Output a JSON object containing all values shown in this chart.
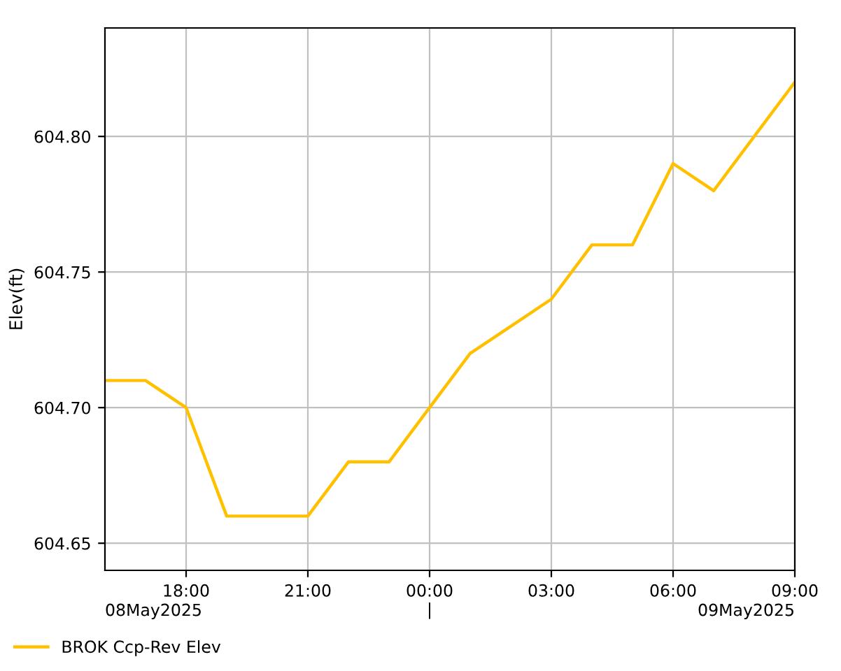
{
  "chart_data": {
    "type": "line",
    "ylabel": "Elev(ft)",
    "x": [
      "2025-05-08T16:00",
      "2025-05-08T17:00",
      "2025-05-08T18:00",
      "2025-05-08T19:00",
      "2025-05-08T20:00",
      "2025-05-08T21:00",
      "2025-05-08T22:00",
      "2025-05-08T23:00",
      "2025-05-09T00:00",
      "2025-05-09T01:00",
      "2025-05-09T02:00",
      "2025-05-09T03:00",
      "2025-05-09T04:00",
      "2025-05-09T05:00",
      "2025-05-09T06:00",
      "2025-05-09T07:00",
      "2025-05-09T08:00",
      "2025-05-09T09:00"
    ],
    "series": [
      {
        "name": "BROK Ccp-Rev Elev",
        "color": "#ffc000",
        "values": [
          604.71,
          604.71,
          604.7,
          604.66,
          604.66,
          604.66,
          604.68,
          604.68,
          604.7,
          604.72,
          604.73,
          604.74,
          604.76,
          604.76,
          604.79,
          604.78,
          604.8,
          604.82
        ]
      }
    ],
    "xlim": [
      "2025-05-08T16:00",
      "2025-05-09T09:00"
    ],
    "xticks": [
      {
        "value": "2025-05-08T18:00",
        "label": "18:00"
      },
      {
        "value": "2025-05-08T21:00",
        "label": "21:00"
      },
      {
        "value": "2025-05-09T00:00",
        "label": "00:00\n|"
      },
      {
        "value": "2025-05-09T03:00",
        "label": "03:00"
      },
      {
        "value": "2025-05-09T06:00",
        "label": "06:00"
      },
      {
        "value": "2025-05-09T09:00",
        "label": "09:00"
      }
    ],
    "annotations": [
      "08May2025",
      "09May2025"
    ],
    "ylim": [
      604.64,
      604.84
    ],
    "yticks": [
      {
        "value": 604.65,
        "label": "604.65"
      },
      {
        "value": 604.7,
        "label": "604.70"
      },
      {
        "value": 604.75,
        "label": "604.75"
      },
      {
        "value": 604.8,
        "label": "604.80"
      }
    ],
    "grid": true,
    "legend": "bottom left",
    "marker": "none",
    "line_style": "solid"
  }
}
